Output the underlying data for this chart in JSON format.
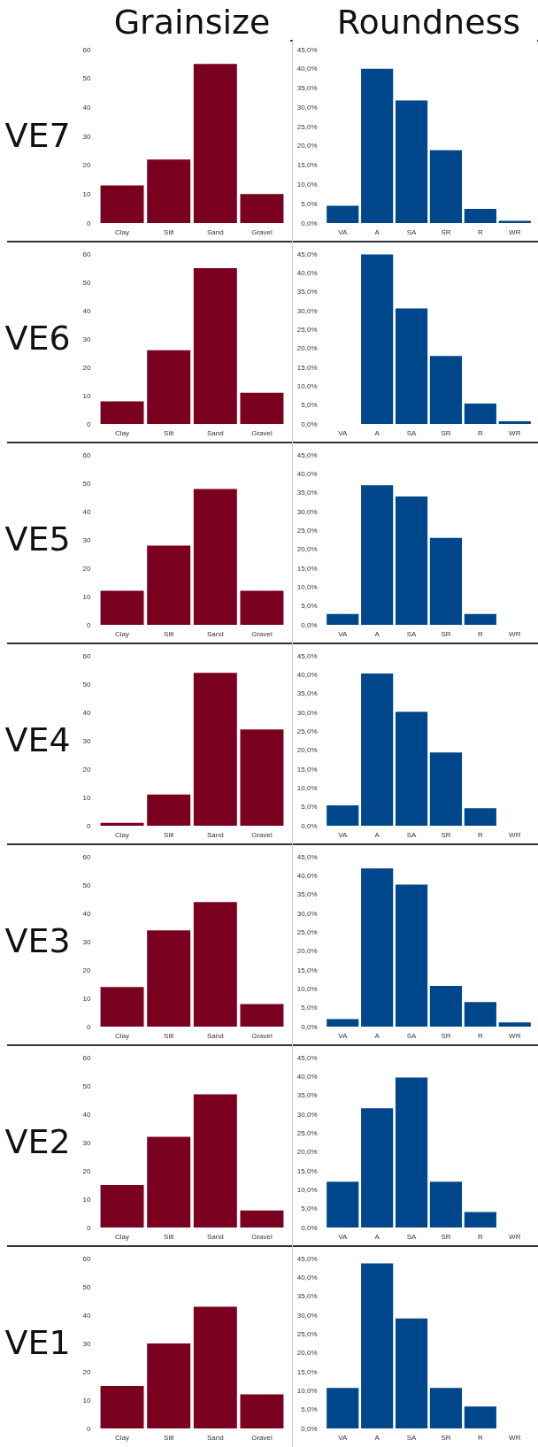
{
  "chart_data": [
    {
      "type": "bar",
      "title": "Grainsize",
      "ylabel": "VE7",
      "categories": [
        "Clay",
        "Silt",
        "Sand",
        "Gravel"
      ],
      "values": [
        13,
        22,
        55,
        10
      ],
      "color": "#7a0020",
      "ylim": [
        0,
        60
      ],
      "yticks": [
        0,
        10,
        20,
        30,
        40,
        50,
        60
      ]
    },
    {
      "type": "bar",
      "title": "Roundness",
      "categories": [
        "VA",
        "A",
        "SA",
        "SR",
        "R",
        "WR"
      ],
      "values": [
        4.5,
        40,
        31.8,
        18.9,
        3.7,
        0.6
      ],
      "color": "#00468b",
      "ylim": [
        0,
        45
      ],
      "yticks": [
        {
          "value": 0,
          "label": "0,0%"
        },
        {
          "value": 5,
          "label": "5,0%"
        },
        {
          "value": 10,
          "label": "10,0%"
        },
        {
          "value": 15,
          "label": "15,0%"
        },
        {
          "value": 20,
          "label": "20,0%"
        },
        {
          "value": 25,
          "label": "25,0%"
        },
        {
          "value": 30,
          "label": "30,0%"
        },
        {
          "value": 35,
          "label": "35,0%"
        },
        {
          "value": 40,
          "label": "40,0%"
        },
        {
          "value": 45,
          "label": "45,0%"
        }
      ]
    },
    {
      "type": "bar",
      "ylabel": "VE6",
      "categories": [
        "Clay",
        "Silt",
        "Sand",
        "Gravel"
      ],
      "values": [
        8,
        26,
        55,
        11
      ],
      "color": "#7a0020",
      "ylim": [
        0,
        60
      ],
      "yticks": [
        0,
        10,
        20,
        30,
        40,
        50,
        60
      ]
    },
    {
      "type": "bar",
      "categories": [
        "VA",
        "A",
        "SA",
        "SR",
        "R",
        "WR"
      ],
      "values": [
        0,
        44.9,
        30.6,
        18,
        5.4,
        0.7
      ],
      "color": "#00468b",
      "ylim": [
        0,
        45
      ],
      "yticks": [
        {
          "value": 0,
          "label": "0,0%"
        },
        {
          "value": 5,
          "label": "5,0%"
        },
        {
          "value": 10,
          "label": "10,0%"
        },
        {
          "value": 15,
          "label": "15,0%"
        },
        {
          "value": 20,
          "label": "20,0%"
        },
        {
          "value": 25,
          "label": "25,0%"
        },
        {
          "value": 30,
          "label": "30,0%"
        },
        {
          "value": 35,
          "label": "35,0%"
        },
        {
          "value": 40,
          "label": "40,0%"
        },
        {
          "value": 45,
          "label": "45,0%"
        }
      ]
    },
    {
      "type": "bar",
      "ylabel": "VE5",
      "categories": [
        "Clay",
        "Silt",
        "Sand",
        "Gravel"
      ],
      "values": [
        12,
        28,
        48,
        12
      ],
      "color": "#7a0020",
      "ylim": [
        0,
        60
      ],
      "yticks": [
        0,
        10,
        20,
        30,
        40,
        50,
        60
      ]
    },
    {
      "type": "bar",
      "categories": [
        "VA",
        "A",
        "SA",
        "SR",
        "R",
        "WR"
      ],
      "values": [
        2.9,
        37,
        34,
        23,
        2.9,
        0
      ],
      "color": "#00468b",
      "ylim": [
        0,
        45
      ],
      "yticks": [
        {
          "value": 0,
          "label": "0,0%"
        },
        {
          "value": 5,
          "label": "5,0%"
        },
        {
          "value": 10,
          "label": "10,0%"
        },
        {
          "value": 15,
          "label": "15,0%"
        },
        {
          "value": 20,
          "label": "20,0%"
        },
        {
          "value": 25,
          "label": "25,0%"
        },
        {
          "value": 30,
          "label": "30,0%"
        },
        {
          "value": 35,
          "label": "35,0%"
        },
        {
          "value": 40,
          "label": "40,0%"
        },
        {
          "value": 45,
          "label": "45,0%"
        }
      ]
    },
    {
      "type": "bar",
      "ylabel": "VE4",
      "categories": [
        "Clay",
        "Silt",
        "Sand",
        "Gravel"
      ],
      "values": [
        1,
        11,
        54,
        34
      ],
      "color": "#7a0020",
      "ylim": [
        0,
        60
      ],
      "yticks": [
        0,
        10,
        20,
        30,
        40,
        50,
        60
      ]
    },
    {
      "type": "bar",
      "categories": [
        "VA",
        "A",
        "SA",
        "SR",
        "R",
        "WR"
      ],
      "values": [
        5.4,
        40.3,
        30.2,
        19.4,
        4.6,
        0
      ],
      "color": "#00468b",
      "ylim": [
        0,
        45
      ],
      "yticks": [
        {
          "value": 0,
          "label": "0,0%"
        },
        {
          "value": 5,
          "label": "5,0%"
        },
        {
          "value": 10,
          "label": "10,0%"
        },
        {
          "value": 15,
          "label": "15,0%"
        },
        {
          "value": 20,
          "label": "20,0%"
        },
        {
          "value": 25,
          "label": "25,0%"
        },
        {
          "value": 30,
          "label": "30,0%"
        },
        {
          "value": 35,
          "label": "35,0%"
        },
        {
          "value": 40,
          "label": "40,0%"
        },
        {
          "value": 45,
          "label": "45,0%"
        }
      ]
    },
    {
      "type": "bar",
      "ylabel": "VE3",
      "categories": [
        "Clay",
        "Silt",
        "Sand",
        "Gravel"
      ],
      "values": [
        14,
        34,
        44,
        8
      ],
      "color": "#7a0020",
      "ylim": [
        0,
        60
      ],
      "yticks": [
        0,
        10,
        20,
        30,
        40,
        50,
        60
      ]
    },
    {
      "type": "bar",
      "categories": [
        "VA",
        "A",
        "SA",
        "SR",
        "R",
        "WR"
      ],
      "values": [
        2,
        41.9,
        37.6,
        10.8,
        6.5,
        1.1
      ],
      "color": "#00468b",
      "ylim": [
        0,
        45
      ],
      "yticks": [
        {
          "value": 0,
          "label": "0,0%"
        },
        {
          "value": 5,
          "label": "5,0%"
        },
        {
          "value": 10,
          "label": "10,0%"
        },
        {
          "value": 15,
          "label": "15,0%"
        },
        {
          "value": 20,
          "label": "20,0%"
        },
        {
          "value": 25,
          "label": "25,0%"
        },
        {
          "value": 30,
          "label": "30,0%"
        },
        {
          "value": 35,
          "label": "35,0%"
        },
        {
          "value": 40,
          "label": "40,0%"
        },
        {
          "value": 45,
          "label": "45,0%"
        }
      ]
    },
    {
      "type": "bar",
      "ylabel": "VE2",
      "categories": [
        "Clay",
        "Silt",
        "Sand",
        "Gravel"
      ],
      "values": [
        15,
        32,
        47,
        6
      ],
      "color": "#7a0020",
      "ylim": [
        0,
        60
      ],
      "yticks": [
        0,
        10,
        20,
        30,
        40,
        50,
        60
      ]
    },
    {
      "type": "bar",
      "categories": [
        "VA",
        "A",
        "SA",
        "SR",
        "R",
        "WR"
      ],
      "values": [
        12.1,
        31.6,
        39.7,
        12.1,
        4.1,
        0
      ],
      "color": "#00468b",
      "ylim": [
        0,
        45
      ],
      "yticks": [
        {
          "value": 0,
          "label": "0,0%"
        },
        {
          "value": 5,
          "label": "5,0%"
        },
        {
          "value": 10,
          "label": "10,0%"
        },
        {
          "value": 15,
          "label": "15,0%"
        },
        {
          "value": 20,
          "label": "20,0%"
        },
        {
          "value": 25,
          "label": "25,0%"
        },
        {
          "value": 30,
          "label": "30,0%"
        },
        {
          "value": 35,
          "label": "35,0%"
        },
        {
          "value": 40,
          "label": "40,0%"
        },
        {
          "value": 45,
          "label": "45,0%"
        }
      ]
    },
    {
      "type": "bar",
      "ylabel": "VE1",
      "categories": [
        "Clay",
        "Silt",
        "Sand",
        "Gravel"
      ],
      "values": [
        15,
        30,
        43,
        12
      ],
      "color": "#7a0020",
      "ylim": [
        0,
        60
      ],
      "yticks": [
        0,
        10,
        20,
        30,
        40,
        50,
        60
      ]
    },
    {
      "type": "bar",
      "categories": [
        "VA",
        "A",
        "SA",
        "SR",
        "R",
        "WR"
      ],
      "values": [
        10.7,
        43.7,
        29.1,
        10.7,
        5.8,
        0
      ],
      "color": "#00468b",
      "ylim": [
        0,
        45
      ],
      "yticks": [
        {
          "value": 0,
          "label": "0,0%"
        },
        {
          "value": 5,
          "label": "5,0%"
        },
        {
          "value": 10,
          "label": "10,0%"
        },
        {
          "value": 15,
          "label": "15,0%"
        },
        {
          "value": 20,
          "label": "20,0%"
        },
        {
          "value": 25,
          "label": "25,0%"
        },
        {
          "value": 30,
          "label": "30,0%"
        },
        {
          "value": 35,
          "label": "35,0%"
        },
        {
          "value": 40,
          "label": "40,0%"
        },
        {
          "value": 45,
          "label": "45,0%"
        }
      ]
    }
  ]
}
